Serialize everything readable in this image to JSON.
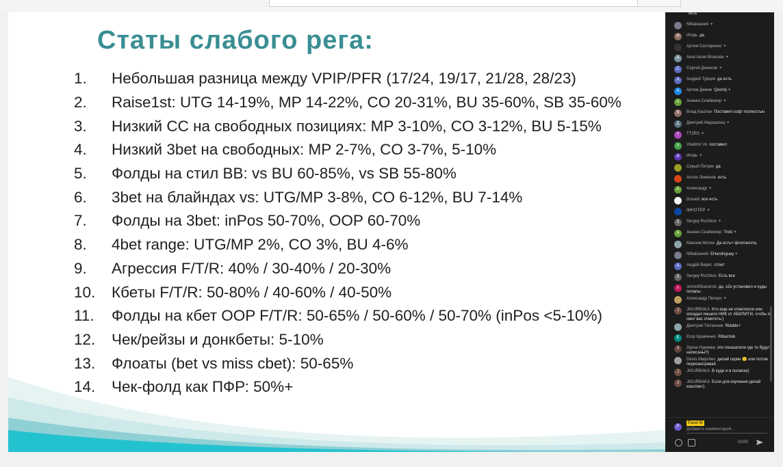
{
  "slide": {
    "title": "Статы слабого рега:",
    "items": [
      {
        "num": "1.",
        "text": "Небольшая разница между VPIP/PFR (17/24, 19/17, 21/28, 28/23)"
      },
      {
        "num": "2.",
        "text": "Raise1st: UTG 14-19%, MP 14-22%, CO 20-31%, BU 35-60%, SB 35-60%"
      },
      {
        "num": "3.",
        "text": "Низкий CC на свободных позициях: MP 3-10%, CO 3-12%, BU 5-15%"
      },
      {
        "num": "4.",
        "text": "Низкий 3bet на свободных: MP 2-7%, CO 3-7%, 5-10%"
      },
      {
        "num": "5.",
        "text": "Фолды на стил BB: vs BU 60-85%, vs SB 55-80%"
      },
      {
        "num": "6.",
        "text": "3bet на блайндах vs: UTG/MP 3-8%, CO 6-12%, BU 7-14%"
      },
      {
        "num": "7.",
        "text": "Фолды на 3bet: inPos 50-70%, OOP 60-70%"
      },
      {
        "num": "8.",
        "text": "4bet range: UTG/MP 2%, CO 3%, BU 4-6%"
      },
      {
        "num": "9.",
        "text": "Агрессия F/T/R: 40% / 30-40% / 20-30%"
      },
      {
        "num": "10.",
        "text": "Кбеты F/T/R: 50-80% / 40-60% / 40-50%"
      },
      {
        "num": "11.",
        "text": "Фолды на кбет OOP F/T/R: 50-65% / 50-60% / 50-70% (inPos <5-10%)"
      },
      {
        "num": "12.",
        "text": "Чек/рейзы и донкбеты: 5-10%"
      },
      {
        "num": "13.",
        "text": "Флоаты (bet vs miss cbet): 50-65%"
      },
      {
        "num": "14.",
        "text": "Чек-фолд как ПФР: 50%+"
      }
    ]
  },
  "chat": {
    "messages": [
      {
        "author": "",
        "text": "есть",
        "avatar": "",
        "color": "#1c1c1c"
      },
      {
        "author": "NMakiawelli",
        "text": "+",
        "avatar": "",
        "color": "#7a7a90"
      },
      {
        "author": "Игорь",
        "text": "да",
        "avatar": "И",
        "color": "#8d6e63"
      },
      {
        "author": "Артем Скотаренко",
        "text": "+",
        "avatar": "",
        "color": "#333333"
      },
      {
        "author": "Анастасия Власова",
        "text": "+",
        "avatar": "А",
        "color": "#78909c"
      },
      {
        "author": "Сергей Денисов",
        "text": "+",
        "avatar": "С",
        "color": "#5c6bc0"
      },
      {
        "author": "Андрей Турцев",
        "text": "да есть",
        "avatar": "А",
        "color": "#5c6bc0"
      },
      {
        "author": "Артем Демин",
        "text": "Qosmij +",
        "avatar": "А",
        "color": "#1e88e5"
      },
      {
        "author": "Анакен Скайвокер",
        "text": "+",
        "avatar": "А",
        "color": "#689f38"
      },
      {
        "author": "Влад Каштан",
        "text": "Поставил софт полностью",
        "avatar": "В",
        "color": "#8d6e63"
      },
      {
        "author": "Дмитрий Маршалец",
        "text": "+",
        "avatar": "Д",
        "color": "#546e7a"
      },
      {
        "author": "TT2RS",
        "text": "+",
        "avatar": "T",
        "color": "#ab47bc"
      },
      {
        "author": "Vladimir Vo",
        "text": "поставил",
        "avatar": "V",
        "color": "#43a047"
      },
      {
        "author": "Игорь",
        "text": "+",
        "avatar": "И",
        "color": "#5e35b1"
      },
      {
        "author": "Серый Петрик",
        "text": "да",
        "avatar": "",
        "color": "#9e9d24"
      },
      {
        "author": "Антон Лимонов",
        "text": "есть",
        "avatar": "",
        "color": "#d84315"
      },
      {
        "author": "Александр",
        "text": "+",
        "avatar": "А",
        "color": "#689f38"
      },
      {
        "author": "Donald",
        "text": "все есть",
        "avatar": "",
        "color": "#f5f5f5"
      },
      {
        "author": "IMHOTEP",
        "text": "+",
        "avatar": "",
        "color": "#0d47a1"
      },
      {
        "author": "Sergey Rozhkov",
        "text": "+",
        "avatar": "S",
        "color": "#616161"
      },
      {
        "author": "Анакен Скайвокер",
        "text": "Trotz +",
        "avatar": "А",
        "color": "#689f38"
      },
      {
        "author": "Максим Мотин",
        "text": "Да есть+ флопзилла,",
        "avatar": "",
        "color": "#90a4ae"
      },
      {
        "author": "NMakiawelli",
        "text": "EHaminguay +",
        "avatar": "",
        "color": "#7a7a90"
      },
      {
        "author": "Андрій Верес",
        "text": "стоит",
        "avatar": "А",
        "color": "#5c6bc0"
      },
      {
        "author": "Sergey Rozhkov",
        "text": "Есть все",
        "avatar": "S",
        "color": "#616161"
      },
      {
        "author": "simon89saransk",
        "text": "да, x2н установил и худы попапы",
        "avatar": "s",
        "color": "#c2185b"
      },
      {
        "author": "Александр Пискун",
        "text": "+",
        "avatar": "",
        "color": "#c0a060"
      },
      {
        "author": "JIGURBAKA",
        "text": "Кто еще не отметился или опоздал пишите НИК от АБИЛИТИ, чтобы я смог вас отметить:)",
        "avatar": "J",
        "color": "#6d4c41"
      },
      {
        "author": "Дмитрий Тютюнник",
        "text": "Riddde+",
        "avatar": "",
        "color": "#90a4ae"
      },
      {
        "author": "Егор Кравченко",
        "text": "Ribachok",
        "avatar": "Е",
        "color": "#00897b"
      },
      {
        "author": "Луиза Нуриева",
        "text": "эти показатели где то будут написаны?)",
        "avatar": "Л",
        "color": "#5d4037"
      },
      {
        "author": "Denis Malyshev",
        "text": "делай скрин 🙂 или потом пересматривай",
        "avatar": "",
        "color": "#9e9e9e"
      },
      {
        "author": "JIGURBAKA",
        "text": "В худе и в попапах)",
        "avatar": "J",
        "color": "#6d4c41"
      },
      {
        "author": "JIGURBAKA",
        "text": "Если для изучения делай конспект)",
        "avatar": "J",
        "color": "#6d4c41"
      }
    ],
    "me_initial": "P",
    "me_name": "Pavel M",
    "input_placeholder": "Добавить комментарий...",
    "char_count": "0/200"
  }
}
